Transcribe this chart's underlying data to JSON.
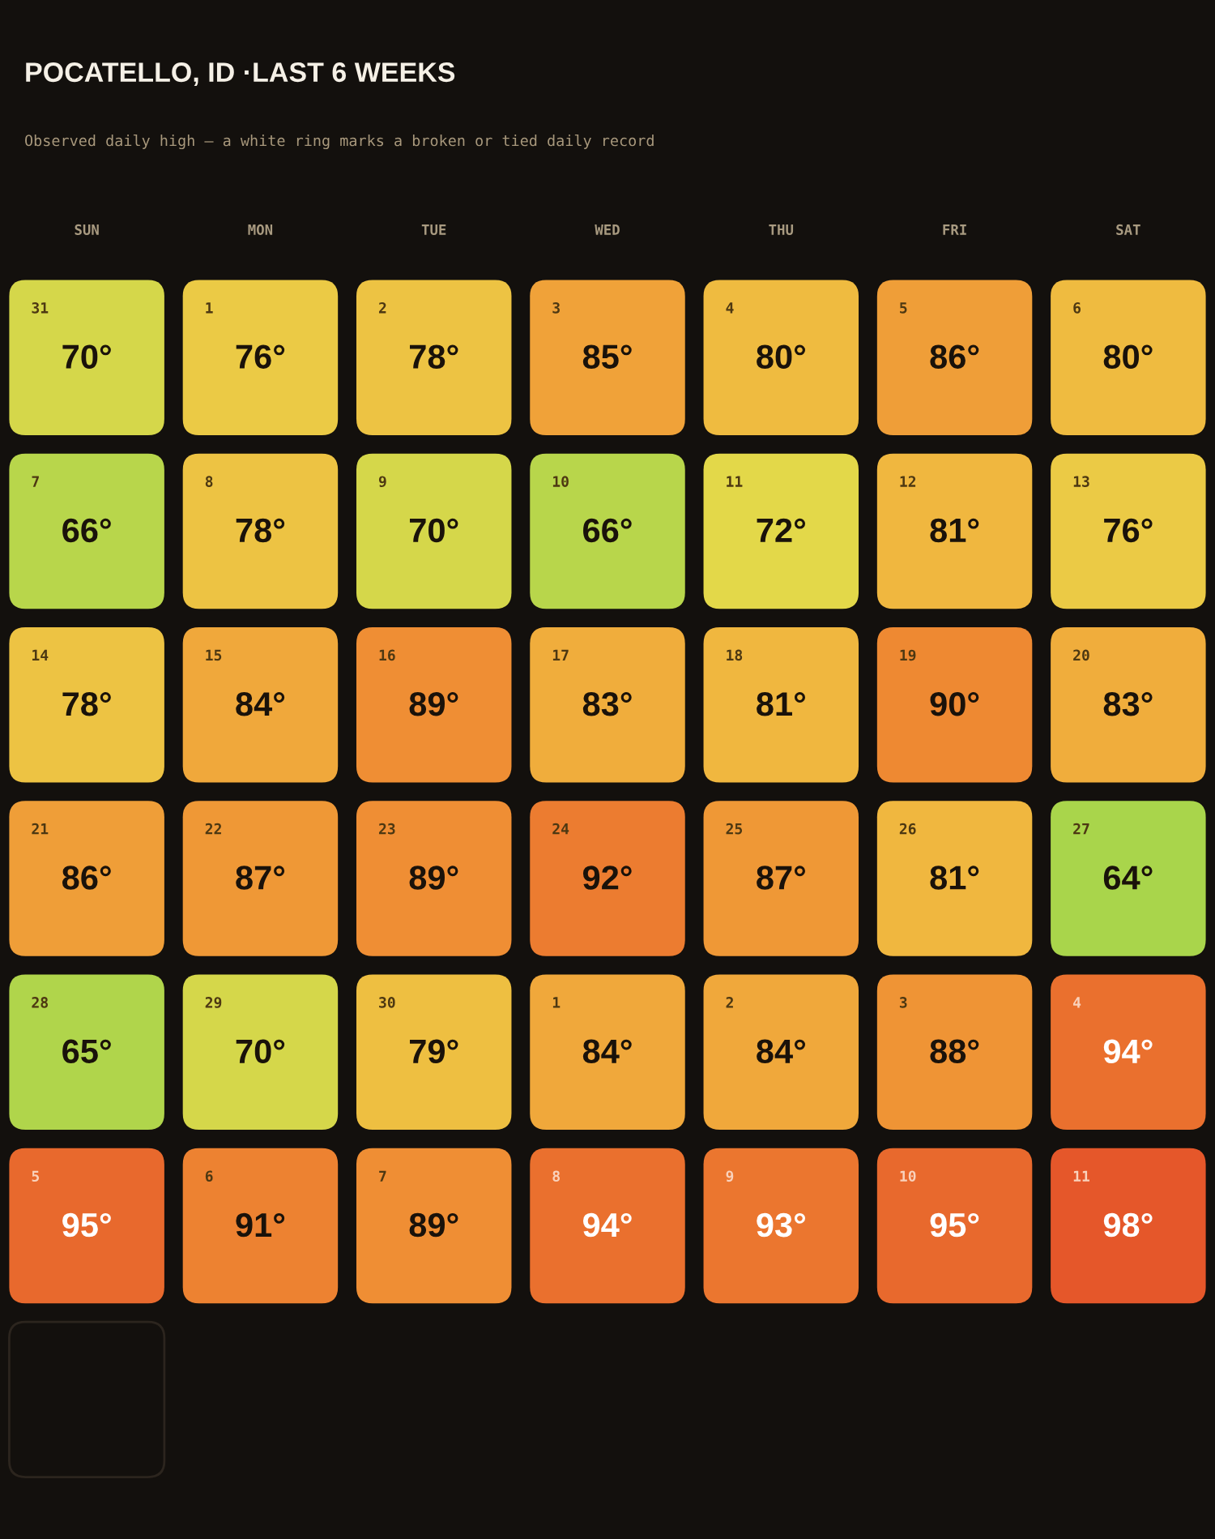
{
  "chart_data": {
    "type": "heatmap",
    "title": "POCATELLO, ID ·LAST 6 WEEKS",
    "subtitle": "Observed daily high — a white ring marks a broken or tied daily record",
    "categories": [
      "SUN",
      "MON",
      "TUE",
      "WED",
      "THU",
      "FRI",
      "SAT"
    ],
    "y_categories": [
      null,
      null,
      null,
      null,
      null,
      null
    ],
    "cells": [
      [
        70,
        76,
        78,
        85,
        80,
        86,
        80
      ],
      [
        66,
        78,
        70,
        66,
        72,
        81,
        76
      ],
      [
        78,
        84,
        89,
        83,
        81,
        90,
        83
      ],
      [
        86,
        87,
        89,
        92,
        87,
        81,
        64
      ],
      [
        65,
        70,
        79,
        84,
        84,
        88,
        94
      ],
      [
        95,
        91,
        89,
        94,
        93,
        95,
        98
      ]
    ],
    "cell_labels": [
      [
        "70°",
        "76°",
        "78°",
        "85°",
        "80°",
        "86°",
        "80°"
      ],
      [
        "66°",
        "78°",
        "70°",
        "66°",
        "72°",
        "81°",
        "76°"
      ],
      [
        "78°",
        "84°",
        "89°",
        "83°",
        "81°",
        "90°",
        "83°"
      ],
      [
        "86°",
        "87°",
        "89°",
        "92°",
        "87°",
        "81°",
        "64°"
      ],
      [
        "65°",
        "70°",
        "79°",
        "84°",
        "84°",
        "88°",
        "94°"
      ],
      [
        "95°",
        "91°",
        "89°",
        "94°",
        "93°",
        "95°",
        "98°"
      ]
    ],
    "annotations": [
      "31",
      "1",
      "2",
      "3",
      "4",
      "5",
      "6",
      "7",
      "8",
      "9",
      "10",
      "11",
      "12",
      "13",
      "14",
      "15",
      "16",
      "17",
      "18",
      "19",
      "20",
      "21",
      "22",
      "23",
      "24",
      "25",
      "26",
      "27",
      "28",
      "29",
      "30",
      "1",
      "2",
      "3",
      "4",
      "5",
      "6",
      "7",
      "8",
      "9",
      "10",
      "11"
    ]
  }
}
